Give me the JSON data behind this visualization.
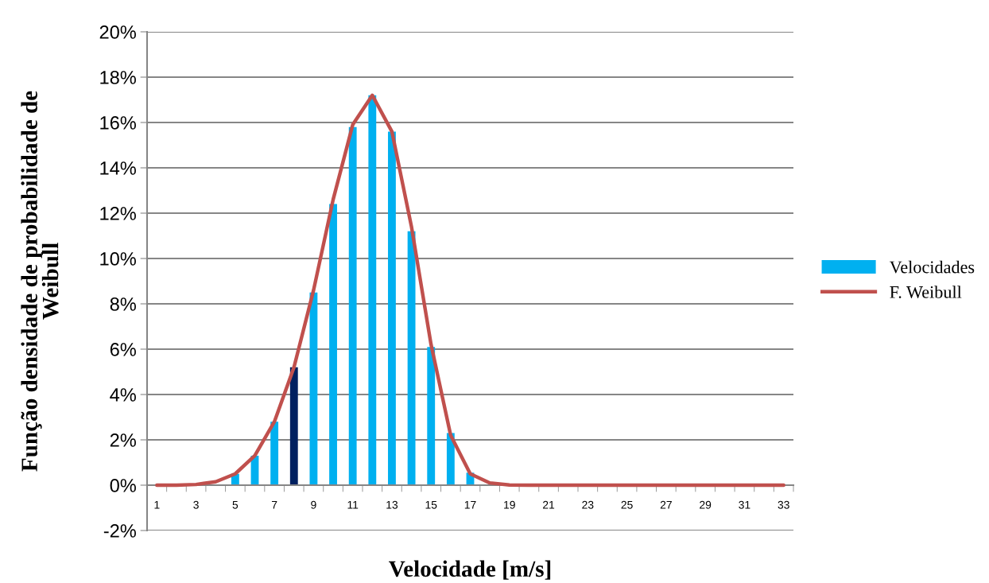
{
  "chart_data": {
    "type": "bar",
    "xlabel": "Velocidade [m/s]",
    "ylabel": "Função densidade de probabilidade de Weibull",
    "categories": [
      "1",
      null,
      "3",
      null,
      "5",
      null,
      "7",
      null,
      "9",
      null,
      "11",
      null,
      "13",
      null,
      "15",
      null,
      "17",
      null,
      "19",
      null,
      "21",
      null,
      "23",
      null,
      "25",
      null,
      "27",
      null,
      "29",
      null,
      "31",
      null,
      "33"
    ],
    "series": [
      {
        "name": "Velocidades",
        "color": "#00b0f0",
        "colors": [
          "#00b0f0",
          "#00b0f0",
          "#00b0f0",
          "#00b0f0",
          "#00b0f0",
          "#00b0f0",
          "#00b0f0",
          "#002060",
          "#00b0f0",
          "#00b0f0",
          "#00b0f0",
          "#00b0f0",
          "#00b0f0",
          "#00b0f0",
          "#00b0f0",
          "#00b0f0",
          "#00b0f0",
          "#00b0f0",
          "#00b0f0",
          "#00b0f0",
          "#00b0f0",
          "#00b0f0",
          "#00b0f0",
          "#00b0f0",
          "#00b0f0",
          "#00b0f0",
          "#00b0f0",
          "#00b0f0",
          "#00b0f0",
          "#00b0f0",
          "#00b0f0",
          "#00b0f0",
          "#00b0f0"
        ],
        "values": [
          0,
          0,
          0,
          0,
          0.5,
          1.3,
          2.8,
          5.2,
          8.5,
          12.4,
          15.8,
          17.2,
          15.6,
          11.2,
          6.1,
          2.3,
          0.55,
          0,
          0,
          0,
          0,
          0,
          0,
          0,
          0,
          0,
          0,
          0,
          0,
          0,
          0,
          0,
          0
        ]
      },
      {
        "name": "F. Weibull",
        "type": "line",
        "color": "#c0504d",
        "values": [
          0,
          0,
          0.03,
          0.15,
          0.5,
          1.3,
          2.8,
          5.2,
          8.6,
          12.6,
          15.9,
          17.2,
          15.6,
          11.4,
          6.2,
          2.2,
          0.5,
          0.1,
          0.01,
          0,
          0,
          0,
          0,
          0,
          0,
          0,
          0,
          0,
          0,
          0,
          0,
          0,
          0
        ]
      }
    ],
    "ylim": [
      -2,
      20
    ],
    "yticks": [
      {
        "value": -2,
        "label": "-2%"
      },
      {
        "value": 0,
        "label": "0%"
      },
      {
        "value": 2,
        "label": "2%"
      },
      {
        "value": 4,
        "label": "4%"
      },
      {
        "value": 6,
        "label": "6%"
      },
      {
        "value": 8,
        "label": "8%"
      },
      {
        "value": 10,
        "label": "10%"
      },
      {
        "value": 12,
        "label": "12%"
      },
      {
        "value": 14,
        "label": "14%"
      },
      {
        "value": 16,
        "label": "16%"
      },
      {
        "value": 18,
        "label": "18%"
      },
      {
        "value": 20,
        "label": "20%"
      }
    ],
    "grid": "y",
    "legend": "right",
    "marker": "none",
    "line_style": "solid"
  }
}
